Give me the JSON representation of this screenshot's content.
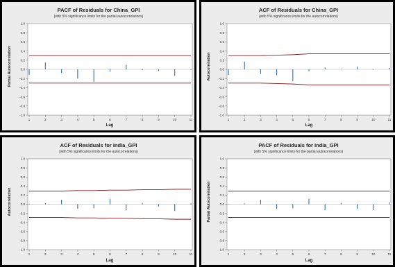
{
  "chart_data": [
    {
      "type": "bar",
      "title": "PACF of Residuals for China_GPI",
      "subtitle": "(with 5% significance limits for the partial autocorrelations)",
      "xlabel": "Lag",
      "ylabel": "Partial Autocorrelation",
      "ylim": [
        -1.0,
        1.0
      ],
      "yticks": [
        "1.0",
        "0.8",
        "0.6",
        "0.4",
        "0.2",
        "0.0",
        "-0.2",
        "-0.4",
        "-0.6",
        "-0.8",
        "-1.0"
      ],
      "categories": [
        "1",
        "2",
        "3",
        "4",
        "5",
        "6",
        "7",
        "8",
        "9",
        "10",
        "11"
      ],
      "values": [
        -0.12,
        0.15,
        -0.08,
        -0.2,
        -0.27,
        -0.05,
        0.1,
        -0.02,
        -0.03,
        -0.14,
        -0.01
      ],
      "upper_limit": [
        0.3,
        0.3,
        0.3,
        0.3,
        0.3,
        0.3,
        0.3,
        0.3,
        0.3,
        0.3,
        0.3
      ],
      "lower_limit": [
        -0.3,
        -0.3,
        -0.3,
        -0.3,
        -0.3,
        -0.3,
        -0.3,
        -0.3,
        -0.3,
        -0.3,
        -0.3
      ],
      "colors": {
        "bar": "#2a6db8",
        "limit": "#8b1a1a"
      }
    },
    {
      "type": "bar",
      "title": "ACF of Residuals for China_GPI",
      "subtitle": "(with 5% significance limits for the autocorrelations)",
      "xlabel": "Lag",
      "ylabel": "Autocorrelation",
      "ylim": [
        -1.0,
        1.0
      ],
      "yticks": [
        "1.0",
        "0.8",
        "0.6",
        "0.4",
        "0.2",
        "0.0",
        "-0.2",
        "-0.4",
        "-0.6",
        "-0.8",
        "-1.0"
      ],
      "categories": [
        "1",
        "2",
        "3",
        "4",
        "5",
        "6",
        "7",
        "8",
        "9",
        "10",
        "11"
      ],
      "values": [
        -0.12,
        0.17,
        -0.1,
        -0.13,
        -0.26,
        -0.04,
        0.04,
        0.01,
        0.06,
        -0.01,
        0.03
      ],
      "upper_limit": [
        0.3,
        0.3,
        0.3,
        0.31,
        0.32,
        0.34,
        0.34,
        0.34,
        0.34,
        0.34,
        0.34
      ],
      "lower_limit": [
        -0.3,
        -0.3,
        -0.3,
        -0.31,
        -0.32,
        -0.34,
        -0.34,
        -0.34,
        -0.34,
        -0.34,
        -0.34
      ],
      "colors": {
        "bar": "#2a6db8",
        "limit": "#8b1a1a"
      }
    },
    {
      "type": "bar",
      "title": "ACF of Residuals for India_GPI",
      "subtitle": "(with 5% significance limits for the autocorrelations)",
      "xlabel": "Lag",
      "ylabel": "Autocorrelation",
      "ylim": [
        -1.0,
        1.0
      ],
      "yticks": [
        "1.0",
        "0.8",
        "0.6",
        "0.4",
        "0.2",
        "0.0",
        "-0.2",
        "-0.4",
        "-0.6",
        "-0.8",
        "-1.0"
      ],
      "categories": [
        "1",
        "2",
        "3",
        "4",
        "5",
        "6",
        "7",
        "8",
        "9",
        "10",
        "11"
      ],
      "values": [
        0.01,
        0.02,
        0.1,
        -0.1,
        -0.09,
        0.12,
        -0.13,
        0.03,
        -0.05,
        -0.15,
        0.02
      ],
      "upper_limit": [
        0.29,
        0.29,
        0.29,
        0.3,
        0.3,
        0.31,
        0.31,
        0.32,
        0.32,
        0.33,
        0.33
      ],
      "lower_limit": [
        -0.29,
        -0.29,
        -0.29,
        -0.3,
        -0.3,
        -0.31,
        -0.31,
        -0.32,
        -0.32,
        -0.33,
        -0.33
      ],
      "colors": {
        "bar": "#2a6db8",
        "limit": "#8b1a1a"
      }
    },
    {
      "type": "bar",
      "title": "PACF of Residuals for India_GPI",
      "subtitle": "(with 5% significance limits for the partial autocorrelations)",
      "xlabel": "Lag",
      "ylabel": "Partial Autocorrelation",
      "ylim": [
        -1.0,
        1.0
      ],
      "yticks": [
        "1.0",
        "0.8",
        "0.6",
        "0.4",
        "0.2",
        "0.0",
        "-0.2",
        "-0.4",
        "-0.6",
        "-0.8",
        "-1.0"
      ],
      "categories": [
        "1",
        "2",
        "3",
        "4",
        "5",
        "6",
        "7",
        "8",
        "9",
        "10",
        "11"
      ],
      "values": [
        0.01,
        0.02,
        0.1,
        -0.1,
        -0.09,
        0.12,
        -0.13,
        0.03,
        -0.1,
        -0.13,
        0.04
      ],
      "upper_limit": [
        0.29,
        0.29,
        0.29,
        0.29,
        0.29,
        0.29,
        0.29,
        0.29,
        0.29,
        0.29,
        0.29
      ],
      "lower_limit": [
        -0.29,
        -0.29,
        -0.29,
        -0.29,
        -0.29,
        -0.29,
        -0.29,
        -0.29,
        -0.29,
        -0.29,
        -0.29
      ],
      "colors": {
        "bar": "#2a6db8",
        "limit": "#8b1a1a"
      }
    }
  ]
}
